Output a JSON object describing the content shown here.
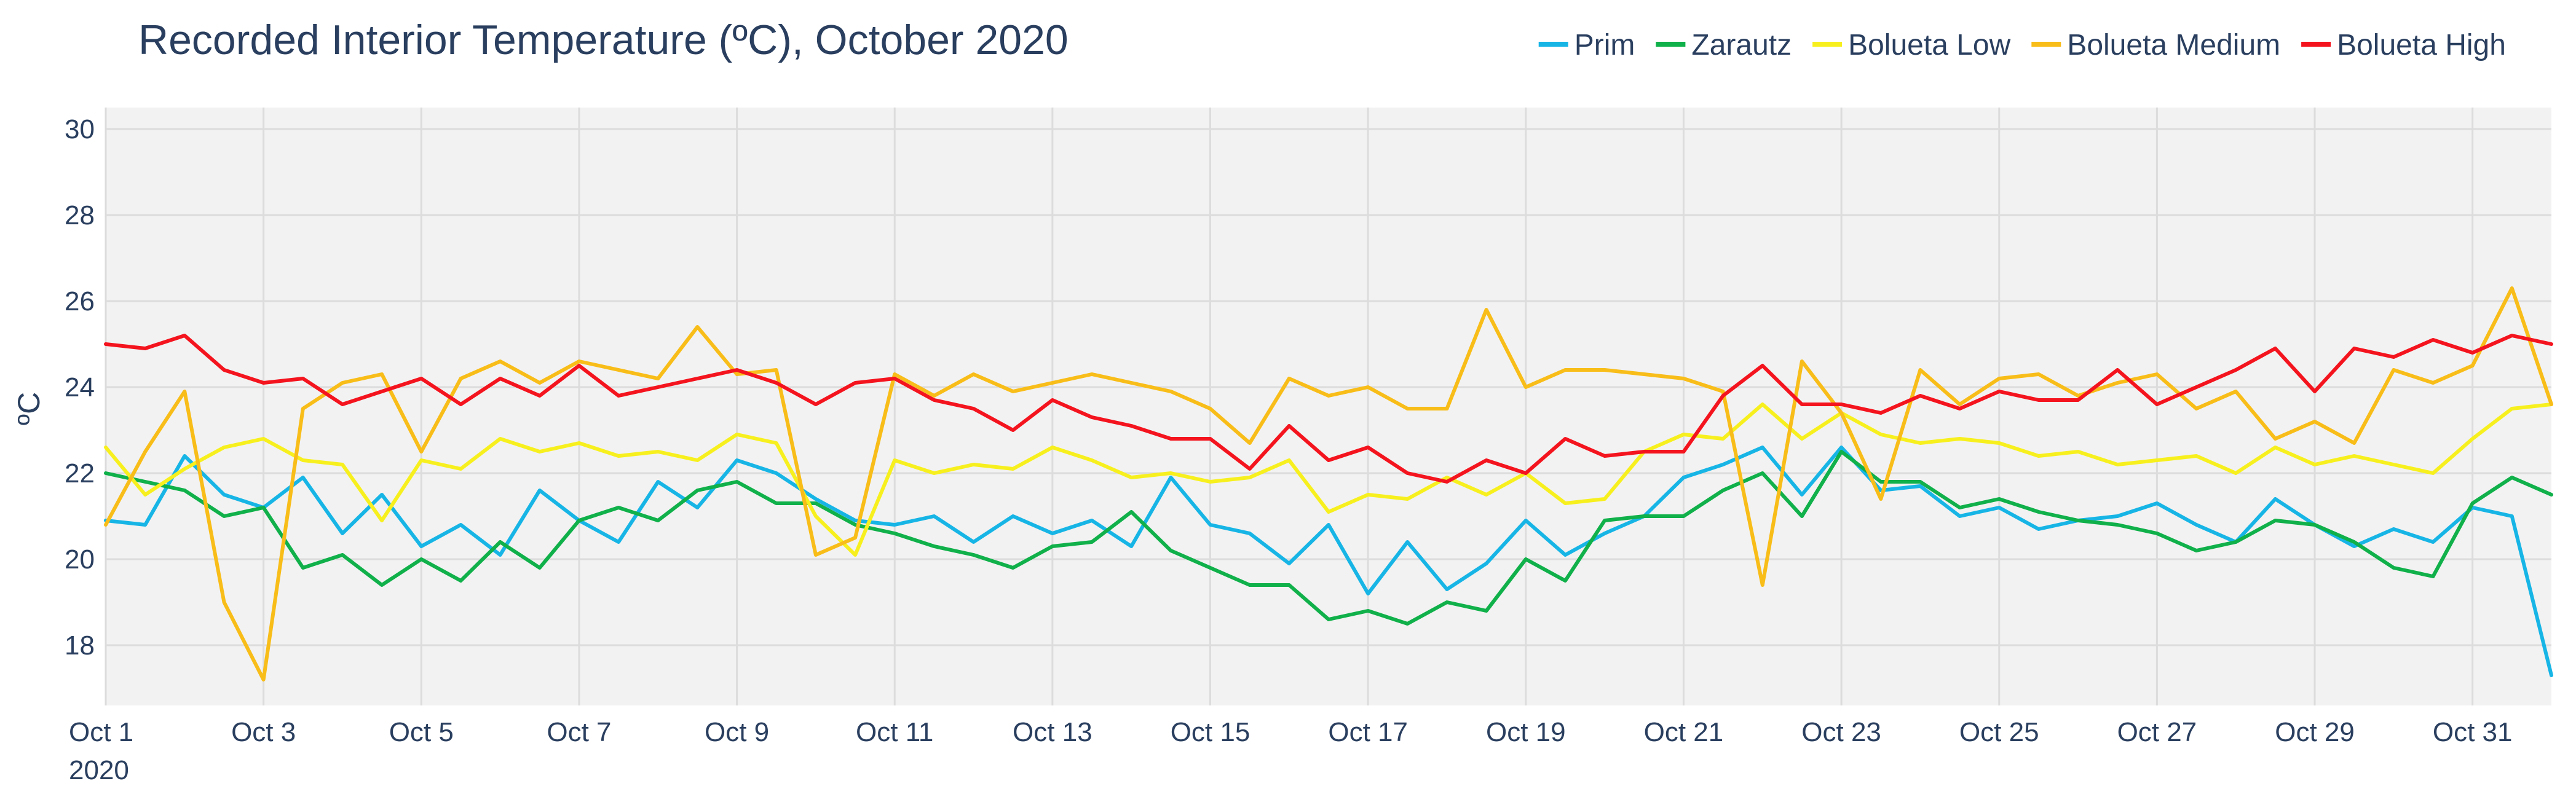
{
  "chart_data": {
    "type": "line",
    "title": "Recorded Interior Temperature (ºC), October 2020",
    "ylabel": "ºC",
    "xlabel": "",
    "ylim": [
      16.6,
      30.5
    ],
    "xlim": [
      1,
      32
    ],
    "grid": true,
    "legend_position": "top-right",
    "plot_background": "#f2f2f2",
    "yticks": [
      {
        "value": 18,
        "label": "18"
      },
      {
        "value": 20,
        "label": "20"
      },
      {
        "value": 22,
        "label": "22"
      },
      {
        "value": 24,
        "label": "24"
      },
      {
        "value": 26,
        "label": "26"
      },
      {
        "value": 28,
        "label": "28"
      },
      {
        "value": 30,
        "label": "30"
      }
    ],
    "xticks": [
      {
        "value": 1,
        "label": "Oct 1",
        "sublabel": "2020"
      },
      {
        "value": 3,
        "label": "Oct 3"
      },
      {
        "value": 5,
        "label": "Oct 5"
      },
      {
        "value": 7,
        "label": "Oct 7"
      },
      {
        "value": 9,
        "label": "Oct 9"
      },
      {
        "value": 11,
        "label": "Oct 11"
      },
      {
        "value": 13,
        "label": "Oct 13"
      },
      {
        "value": 15,
        "label": "Oct 15"
      },
      {
        "value": 17,
        "label": "Oct 17"
      },
      {
        "value": 19,
        "label": "Oct 19"
      },
      {
        "value": 21,
        "label": "Oct 21"
      },
      {
        "value": 23,
        "label": "Oct 23"
      },
      {
        "value": 25,
        "label": "Oct 25"
      },
      {
        "value": 27,
        "label": "Oct 27"
      },
      {
        "value": 29,
        "label": "Oct 29"
      },
      {
        "value": 31,
        "label": "Oct 31"
      }
    ],
    "x": [
      1,
      1.5,
      2,
      2.5,
      3,
      3.5,
      4,
      4.5,
      5,
      5.5,
      6,
      6.5,
      7,
      7.5,
      8,
      8.5,
      9,
      9.5,
      10,
      10.5,
      11,
      11.5,
      12,
      12.5,
      13,
      13.5,
      14,
      14.5,
      15,
      15.5,
      16,
      16.5,
      17,
      17.5,
      18,
      18.5,
      19,
      19.5,
      20,
      20.5,
      21,
      21.5,
      22,
      22.5,
      23,
      23.5,
      24,
      24.5,
      25,
      25.5,
      26,
      26.5,
      27,
      27.5,
      28,
      28.5,
      29,
      29.5,
      30,
      30.5,
      31,
      31.5,
      32
    ],
    "series": [
      {
        "name": "Prim",
        "color": "#17b5e6",
        "values": [
          20.9,
          20.8,
          22.4,
          21.5,
          21.2,
          21.9,
          20.6,
          21.5,
          20.3,
          20.8,
          20.1,
          21.6,
          20.9,
          20.4,
          21.8,
          21.2,
          22.3,
          22.0,
          21.4,
          20.9,
          20.8,
          21.0,
          20.4,
          21.0,
          20.6,
          20.9,
          20.3,
          21.9,
          20.8,
          20.6,
          19.9,
          20.8,
          19.2,
          20.4,
          19.3,
          19.9,
          20.9,
          20.1,
          20.6,
          21.0,
          21.9,
          22.2,
          22.6,
          21.5,
          22.6,
          21.6,
          21.7,
          21.0,
          21.2,
          20.7,
          20.9,
          21.0,
          21.3,
          20.8,
          20.4,
          21.4,
          20.8,
          20.3,
          20.7,
          20.4,
          21.2,
          21.0,
          17.3
        ]
      },
      {
        "name": "Zarautz",
        "color": "#10b04a",
        "values": [
          22.0,
          21.8,
          21.6,
          21.0,
          21.2,
          19.8,
          20.1,
          19.4,
          20.0,
          19.5,
          20.4,
          19.8,
          20.9,
          21.2,
          20.9,
          21.6,
          21.8,
          21.3,
          21.3,
          20.8,
          20.6,
          20.3,
          20.1,
          19.8,
          20.3,
          20.4,
          21.1,
          20.2,
          19.8,
          19.4,
          19.4,
          18.6,
          18.8,
          18.5,
          19.0,
          18.8,
          20.0,
          19.5,
          20.9,
          21.0,
          21.0,
          21.6,
          22.0,
          21.0,
          22.5,
          21.8,
          21.8,
          21.2,
          21.4,
          21.1,
          20.9,
          20.8,
          20.6,
          20.2,
          20.4,
          20.9,
          20.8,
          20.4,
          19.8,
          19.6,
          21.3,
          21.9,
          21.5
        ]
      },
      {
        "name": "Bolueta Low",
        "color": "#f7f01e",
        "values": [
          22.6,
          21.5,
          22.1,
          22.6,
          22.8,
          22.3,
          22.2,
          20.9,
          22.3,
          22.1,
          22.8,
          22.5,
          22.7,
          22.4,
          22.5,
          22.3,
          22.9,
          22.7,
          21.0,
          20.1,
          22.3,
          22.0,
          22.2,
          22.1,
          22.6,
          22.3,
          21.9,
          22.0,
          21.8,
          21.9,
          22.3,
          21.1,
          21.5,
          21.4,
          21.9,
          21.5,
          22.0,
          21.3,
          21.4,
          22.5,
          22.9,
          22.8,
          23.6,
          22.8,
          23.4,
          22.9,
          22.7,
          22.8,
          22.7,
          22.4,
          22.5,
          22.2,
          22.3,
          22.4,
          22.0,
          22.6,
          22.2,
          22.4,
          22.2,
          22.0,
          22.8,
          23.5,
          23.6
        ]
      },
      {
        "name": "Bolueta Medium",
        "color": "#f8bd18",
        "values": [
          20.8,
          22.5,
          23.9,
          19.0,
          17.2,
          23.5,
          24.1,
          24.3,
          22.5,
          24.2,
          24.6,
          24.1,
          24.6,
          24.4,
          24.2,
          25.4,
          24.3,
          24.4,
          20.1,
          20.5,
          24.3,
          23.8,
          24.3,
          23.9,
          24.1,
          24.3,
          24.1,
          23.9,
          23.5,
          22.7,
          24.2,
          23.8,
          24.0,
          23.5,
          23.5,
          25.8,
          24.0,
          24.4,
          24.4,
          24.3,
          24.2,
          23.9,
          19.4,
          24.6,
          23.4,
          21.4,
          24.4,
          23.6,
          24.2,
          24.3,
          23.8,
          24.1,
          24.3,
          23.5,
          23.9,
          22.8,
          23.2,
          22.7,
          24.4,
          24.1,
          24.5,
          26.3,
          23.6
        ]
      },
      {
        "name": "Bolueta High",
        "color": "#f4141e",
        "values": [
          25.0,
          24.9,
          25.2,
          24.4,
          24.1,
          24.2,
          23.6,
          23.9,
          24.2,
          23.6,
          24.2,
          23.8,
          24.5,
          23.8,
          24.0,
          24.2,
          24.4,
          24.1,
          23.6,
          24.1,
          24.2,
          23.7,
          23.5,
          23.0,
          23.7,
          23.3,
          23.1,
          22.8,
          22.8,
          22.1,
          23.1,
          22.3,
          22.6,
          22.0,
          21.8,
          22.3,
          22.0,
          22.8,
          22.4,
          22.5,
          22.5,
          23.8,
          24.5,
          23.6,
          23.6,
          23.4,
          23.8,
          23.5,
          23.9,
          23.7,
          23.7,
          24.4,
          23.6,
          24.0,
          24.4,
          24.9,
          23.9,
          24.9,
          24.7,
          25.1,
          24.8,
          25.2,
          25.0
        ]
      }
    ]
  }
}
